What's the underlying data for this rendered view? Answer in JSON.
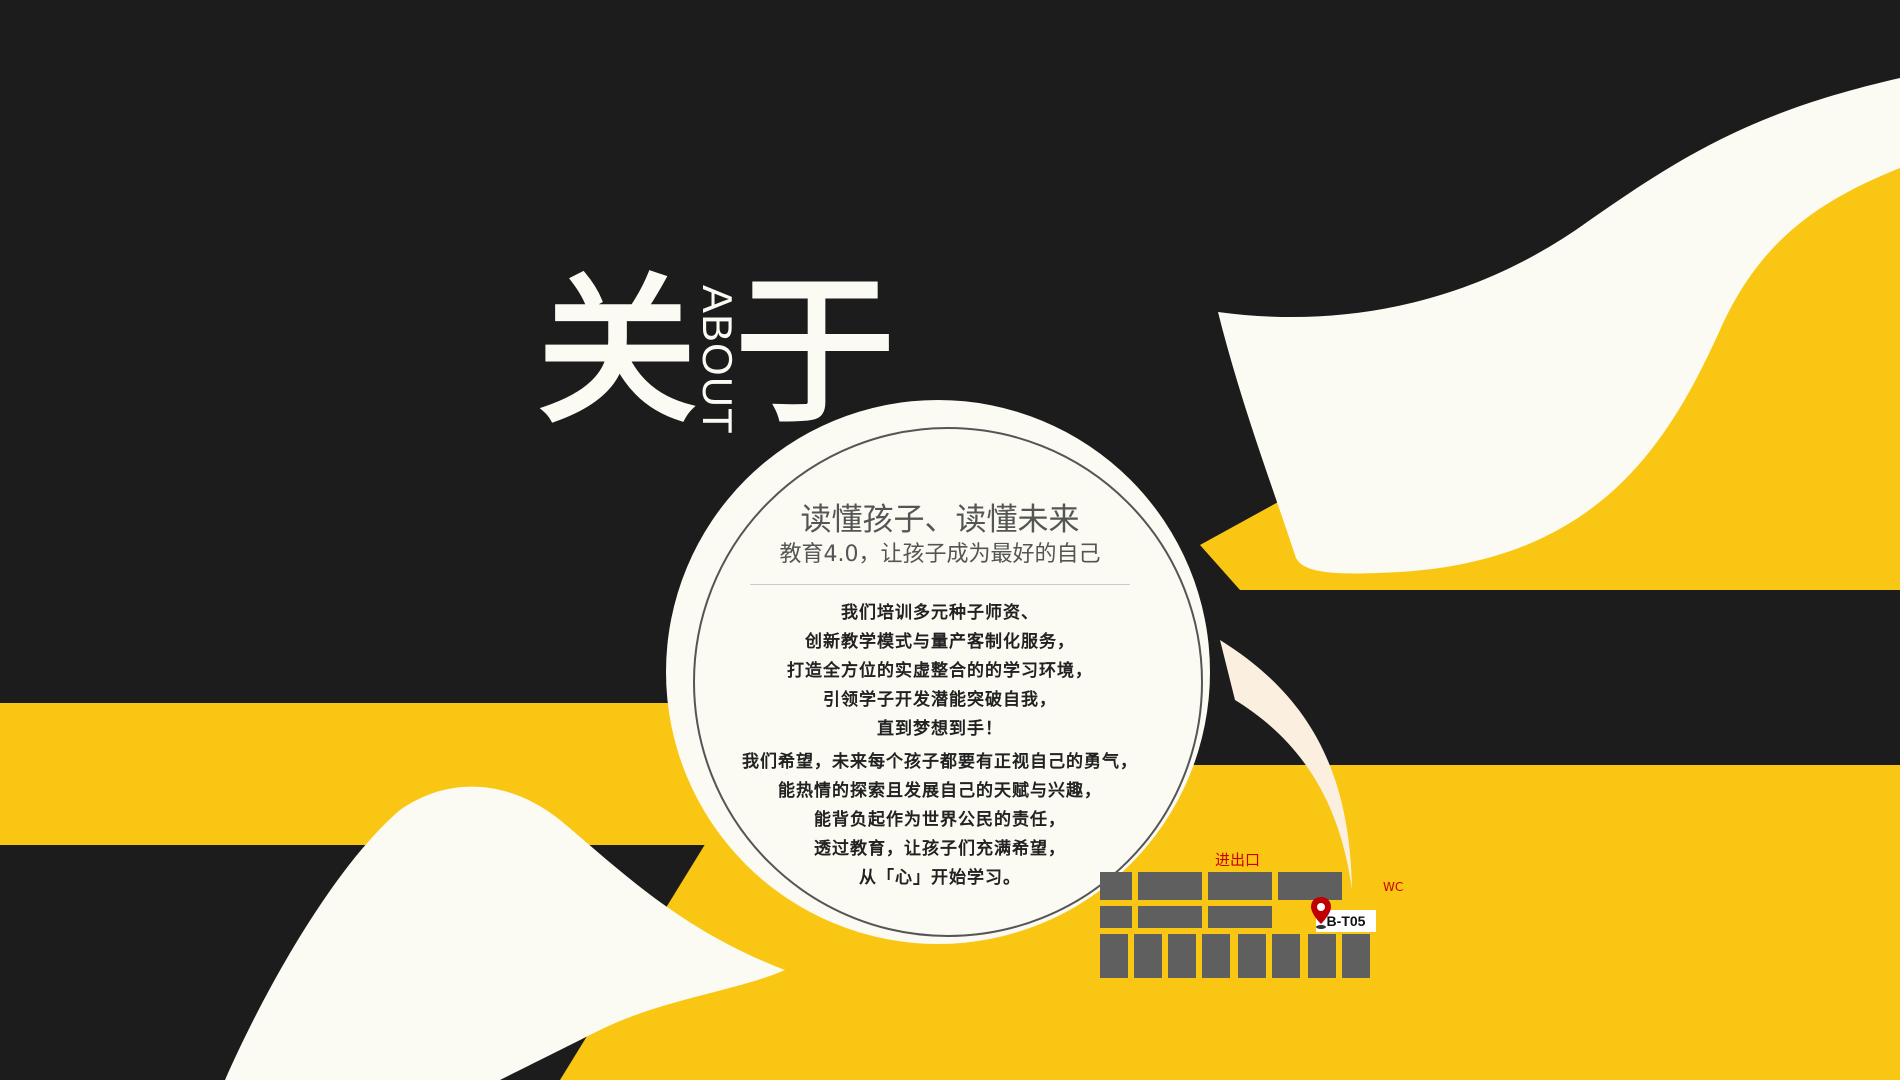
{
  "title": {
    "char_left": "关",
    "char_right": "于",
    "vertical_word": "ABOUT"
  },
  "circle": {
    "headline": "读懂孩子、读懂未来",
    "subhead": "教育4.0，让孩子成为最好的自己",
    "paragraph1": [
      "我们培训多元种子师资、",
      "创新教学模式与量产客制化服务，",
      "打造全方位的实虚整合的的学习环境，",
      "引领学子开发潜能突破自我，",
      "直到梦想到手！"
    ],
    "paragraph2": [
      "我们希望，未来每个孩子都要有正视自己的勇气，",
      "能热情的探索且发展自己的天赋与兴趣，",
      "能背负起作为世界公民的责任，",
      "透过教育，让孩子们充满希望，",
      "从「心」开始学习。"
    ]
  },
  "floor_map": {
    "entrance_label": "进出口",
    "wc_label": "WC",
    "booth_label": "B-T05",
    "pin_icon": "location-pin-icon"
  },
  "colors": {
    "dark": "#1c1c1c",
    "yellow": "#f9c713",
    "cream": "#fbfaf3",
    "block": "#5f5f5f",
    "accent_red": "#c00000"
  }
}
